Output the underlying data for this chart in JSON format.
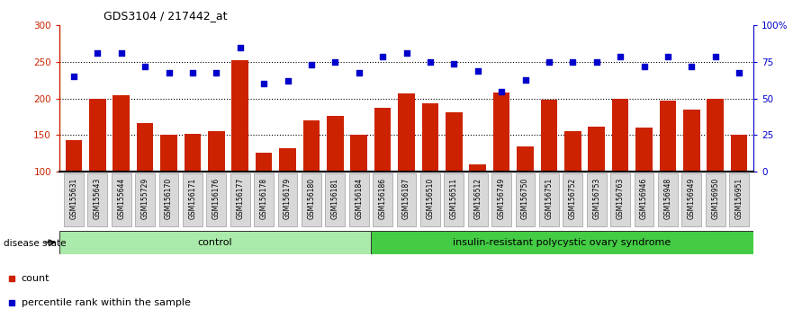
{
  "title": "GDS3104 / 217442_at",
  "samples": [
    "GSM155631",
    "GSM155643",
    "GSM155644",
    "GSM155729",
    "GSM156170",
    "GSM156171",
    "GSM156176",
    "GSM156177",
    "GSM156178",
    "GSM156179",
    "GSM156180",
    "GSM156181",
    "GSM156184",
    "GSM156186",
    "GSM156187",
    "GSM156510",
    "GSM156511",
    "GSM156512",
    "GSM156749",
    "GSM156750",
    "GSM156751",
    "GSM156752",
    "GSM156753",
    "GSM156763",
    "GSM156946",
    "GSM156948",
    "GSM156949",
    "GSM156950",
    "GSM156951"
  ],
  "counts": [
    143,
    200,
    204,
    167,
    150,
    152,
    155,
    253,
    126,
    132,
    170,
    176,
    150,
    188,
    207,
    193,
    181,
    110,
    208,
    135,
    198,
    155,
    162,
    200,
    160,
    197,
    185,
    200,
    150
  ],
  "percentile_left_scale": [
    230,
    262,
    262,
    244,
    235,
    235,
    235,
    270,
    220,
    224,
    246,
    250,
    235,
    257,
    262,
    250,
    247,
    238,
    210,
    226,
    250,
    250,
    250,
    258,
    244,
    258,
    244,
    258,
    235
  ],
  "n_control": 13,
  "group_labels": [
    "control",
    "insulin-resistant polycystic ovary syndrome"
  ],
  "bar_color": "#cc2200",
  "dot_color": "#0000cc",
  "ylim_left": [
    100,
    300
  ],
  "ylim_right": [
    0,
    100
  ],
  "yticks_left": [
    100,
    150,
    200,
    250,
    300
  ],
  "yticks_right": [
    0,
    25,
    50,
    75,
    100
  ],
  "plot_bg": "#ffffff"
}
